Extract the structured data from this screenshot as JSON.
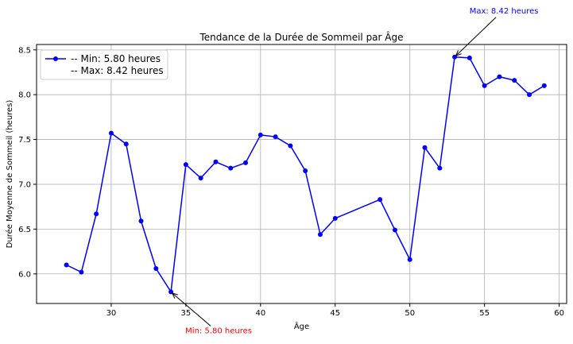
{
  "chart_data": {
    "type": "line",
    "title": "Tendance de la Durée de Sommeil par Âge",
    "xlabel": "Âge",
    "ylabel": "Durée Moyenne de Sommeil (heures)",
    "xlim": [
      25,
      60.5
    ],
    "ylim": [
      5.67,
      8.56
    ],
    "xticks": [
      30,
      35,
      40,
      45,
      50,
      55,
      60
    ],
    "yticks": [
      6.0,
      6.5,
      7.0,
      7.5,
      8.0,
      8.5
    ],
    "grid": true,
    "legend_position": "top-left",
    "legend_entries": [
      "-- Min: 5.80 heures",
      "-- Max: 8.42 heures"
    ],
    "series": [
      {
        "color": "#0000ff",
        "marker": "circle",
        "x": [
          27,
          28,
          29,
          30,
          31,
          32,
          33,
          34,
          35,
          36,
          37,
          38,
          39,
          40,
          41,
          42,
          43,
          44,
          45,
          48,
          49,
          50,
          51,
          52,
          53,
          54,
          55,
          56,
          57,
          58,
          59
        ],
        "y": [
          6.1,
          6.02,
          6.67,
          7.57,
          7.45,
          6.59,
          6.06,
          5.8,
          7.22,
          7.07,
          7.25,
          7.18,
          7.24,
          7.55,
          7.53,
          7.43,
          7.15,
          6.44,
          6.62,
          6.83,
          6.49,
          6.16,
          7.41,
          7.18,
          8.42,
          8.41,
          8.1,
          8.2,
          8.16,
          8.0,
          8.1
        ]
      }
    ],
    "annotations": [
      {
        "text": "Min: 5.80 heures",
        "x": 34,
        "y": 5.8,
        "color": "#ff0000"
      },
      {
        "text": "Max: 8.42 heures",
        "x": 53,
        "y": 8.42,
        "color": "#0000ff"
      }
    ]
  }
}
